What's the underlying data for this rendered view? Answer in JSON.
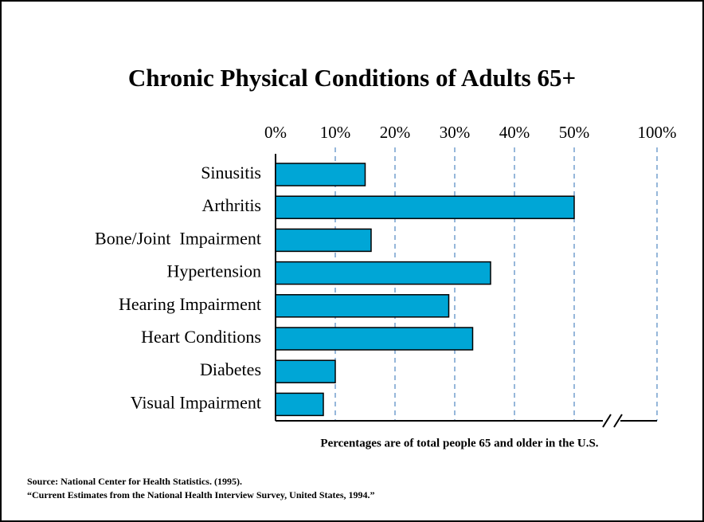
{
  "chart_data": {
    "type": "bar",
    "orientation": "horizontal",
    "title": "Chronic Physical Conditions of Adults 65+",
    "categories": [
      "Sinusitis",
      "Arthritis",
      "Bone/Joint  Impairment",
      "Hypertension",
      "Hearing Impairment",
      "Heart Conditions",
      "Diabetes",
      "Visual Impairment"
    ],
    "values": [
      15,
      50,
      16,
      36,
      29,
      33,
      10,
      8
    ],
    "color": "#00a6d6",
    "xlim": [
      0,
      100
    ],
    "xticks": [
      {
        "value": 0,
        "label": "0%"
      },
      {
        "value": 10,
        "label": "10%"
      },
      {
        "value": 20,
        "label": "20%"
      },
      {
        "value": 30,
        "label": "30%"
      },
      {
        "value": 40,
        "label": "40%"
      },
      {
        "value": 50,
        "label": "50%"
      },
      {
        "value": 100,
        "label": "100%"
      }
    ],
    "axis_break": [
      50,
      100
    ],
    "grid": true,
    "note": "Percentages are of total people 65 and older in the U.S.",
    "source": [
      "Source: National Center for Health Statistics. (1995).",
      "“Current Estimates from the National Health Interview Survey, United States, 1994.”"
    ]
  }
}
